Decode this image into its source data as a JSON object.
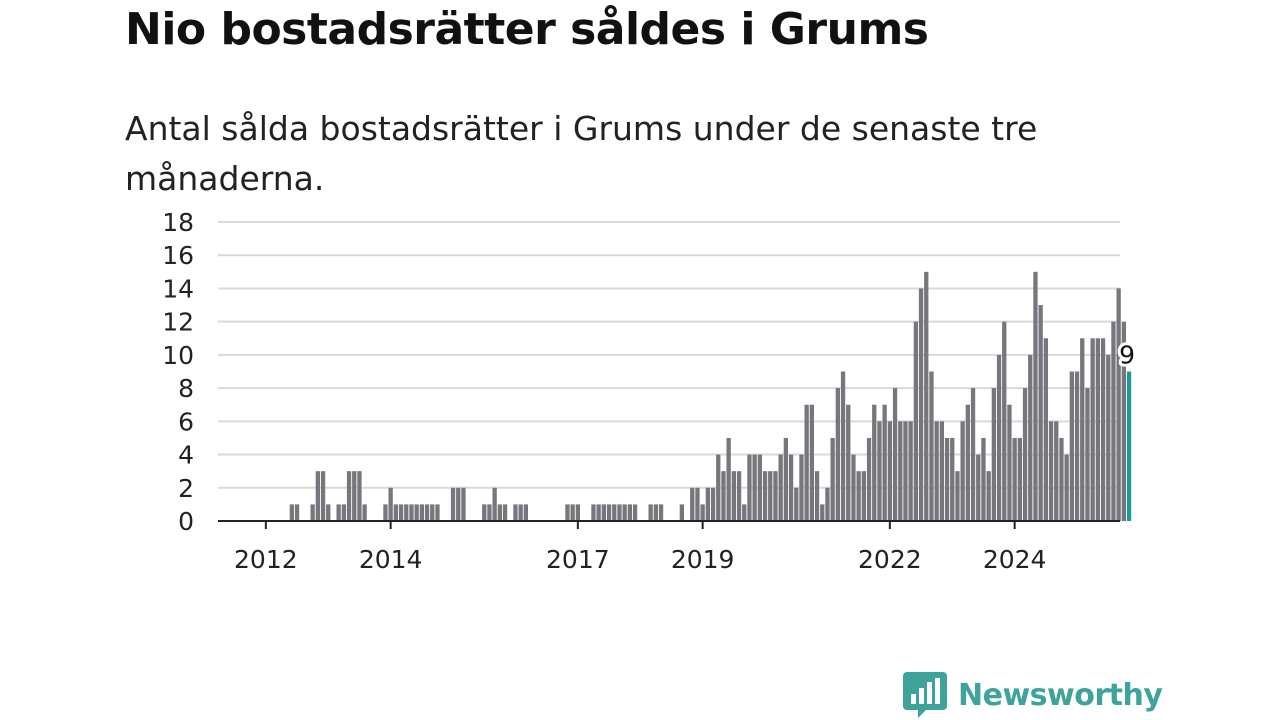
{
  "title": "Nio bostadsrätter såldes i Grums",
  "subtitle": "Antal sålda bostadsrätter i Grums under de senaste tre månaderna.",
  "brand": {
    "name": "Newsworthy",
    "color": "#3ea39a"
  },
  "colors": {
    "bar": "#76767c",
    "highlight": "#1a9b96",
    "grid": "#d9d9d9",
    "axis": "#222222"
  },
  "chart_data": {
    "type": "bar",
    "x_start": "2011-12",
    "x_tick_labels": [
      "2012",
      "2014",
      "2017",
      "2019",
      "2022",
      "2024"
    ],
    "ylim": [
      0,
      18
    ],
    "y_ticks": [
      0,
      2,
      4,
      6,
      8,
      10,
      12,
      14,
      16,
      18
    ],
    "grid": true,
    "highlight_label": "9",
    "values": [
      0,
      0,
      0,
      0,
      0,
      0,
      1,
      1,
      0,
      0,
      1,
      3,
      3,
      1,
      0,
      1,
      1,
      3,
      3,
      3,
      1,
      0,
      0,
      0,
      1,
      2,
      1,
      1,
      1,
      1,
      1,
      1,
      1,
      1,
      1,
      0,
      0,
      2,
      2,
      2,
      0,
      0,
      0,
      1,
      1,
      2,
      1,
      1,
      0,
      1,
      1,
      1,
      0,
      0,
      0,
      0,
      0,
      0,
      0,
      1,
      1,
      1,
      0,
      0,
      1,
      1,
      1,
      1,
      1,
      1,
      1,
      1,
      1,
      0,
      0,
      1,
      1,
      1,
      0,
      0,
      0,
      1,
      0,
      2,
      2,
      1,
      2,
      2,
      4,
      3,
      5,
      3,
      3,
      1,
      4,
      4,
      4,
      3,
      3,
      3,
      4,
      5,
      4,
      2,
      4,
      7,
      7,
      3,
      1,
      2,
      5,
      8,
      9,
      7,
      4,
      3,
      3,
      5,
      7,
      6,
      7,
      6,
      8,
      6,
      6,
      6,
      12,
      14,
      15,
      9,
      6,
      6,
      5,
      5,
      3,
      6,
      7,
      8,
      4,
      5,
      3,
      8,
      10,
      12,
      7,
      5,
      5,
      8,
      10,
      15,
      13,
      11,
      6,
      6,
      5,
      4,
      9,
      9,
      11,
      8,
      11,
      11,
      11,
      10,
      12,
      14,
      12,
      9
    ]
  }
}
